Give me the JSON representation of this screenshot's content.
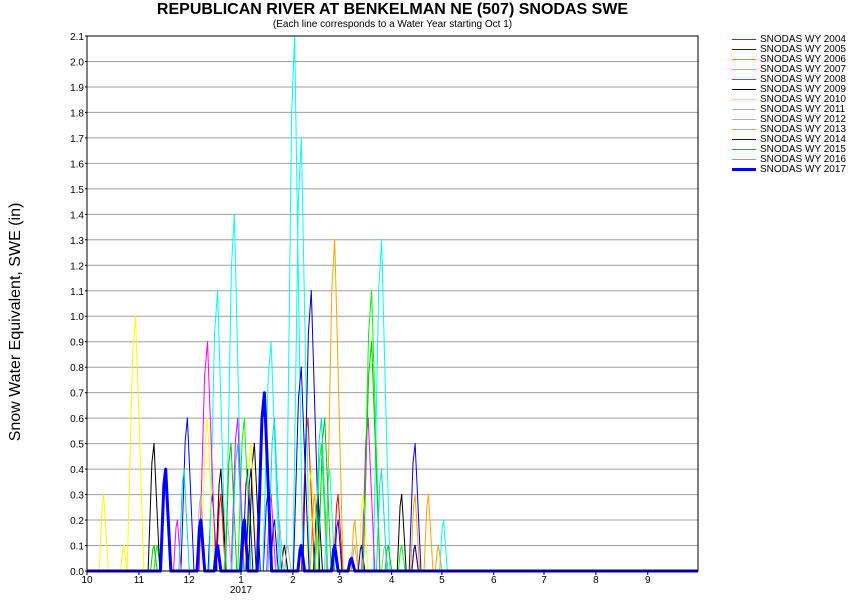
{
  "chart_data": {
    "type": "line",
    "title": "REPUBLICAN RIVER AT BENKELMAN NE (507) SNODAS SWE",
    "subtitle": "(Each line corresponds to a Water Year starting Oct 1)",
    "ylabel": "Snow Water Equivalent, SWE (in)",
    "xlabel": "",
    "year_label": "2017",
    "ylim": [
      0,
      2.1
    ],
    "xlim_days": [
      0,
      365
    ],
    "grid": true,
    "legend": "right",
    "x_ticks": [
      {
        "label": "10",
        "day": 0
      },
      {
        "label": "11",
        "day": 31
      },
      {
        "label": "12",
        "day": 61
      },
      {
        "label": "1",
        "day": 92
      },
      {
        "label": "2",
        "day": 123
      },
      {
        "label": "3",
        "day": 151
      },
      {
        "label": "4",
        "day": 182
      },
      {
        "label": "5",
        "day": 212
      },
      {
        "label": "6",
        "day": 243
      },
      {
        "label": "7",
        "day": 273
      },
      {
        "label": "8",
        "day": 304
      },
      {
        "label": "9",
        "day": 335
      }
    ],
    "y_ticks": [
      "0.0",
      "0.1",
      "0.2",
      "0.3",
      "0.4",
      "0.5",
      "0.6",
      "0.7",
      "0.8",
      "0.9",
      "1.0",
      "1.1",
      "1.2",
      "1.3",
      "1.4",
      "1.5",
      "1.6",
      "1.7",
      "1.8",
      "1.9",
      "2.0",
      "2.1"
    ],
    "series": [
      {
        "name": "SNODAS WY 2004",
        "color": "#ff0000",
        "peaks": [
          [
            80,
            0.3
          ],
          [
            106,
            0.7
          ],
          [
            132,
            0.6
          ],
          [
            150,
            0.3
          ],
          [
            196,
            0.1
          ]
        ]
      },
      {
        "name": "SNODAS WY 2005",
        "color": "#0000ff",
        "peaks": [
          [
            60,
            0.6
          ],
          [
            75,
            0.3
          ],
          [
            96,
            0.4
          ],
          [
            108,
            0.3
          ],
          [
            150,
            0.2
          ],
          [
            196,
            0.5
          ]
        ]
      },
      {
        "name": "SNODAS WY 2006",
        "color": "#00ff00",
        "peaks": [
          [
            42,
            0.1
          ],
          [
            94,
            0.6
          ],
          [
            140,
            0.5
          ],
          [
            170,
            1.1
          ],
          [
            188,
            0.1
          ]
        ]
      },
      {
        "name": "SNODAS WY 2007",
        "color": "#00ffff",
        "peaks": [
          [
            78,
            1.1
          ],
          [
            88,
            1.4
          ],
          [
            110,
            0.9
          ],
          [
            124,
            2.1
          ],
          [
            128,
            1.7
          ],
          [
            145,
            0.4
          ],
          [
            176,
            1.3
          ],
          [
            213,
            0.2
          ]
        ]
      },
      {
        "name": "SNODAS WY 2008",
        "color": "#ff00ff",
        "peaks": [
          [
            54,
            0.2
          ],
          [
            72,
            0.9
          ],
          [
            90,
            0.6
          ],
          [
            110,
            0.3
          ],
          [
            168,
            0.6
          ]
        ]
      },
      {
        "name": "SNODAS WY 2009",
        "color": "#000000",
        "peaks": [
          [
            40,
            0.5
          ],
          [
            80,
            0.4
          ],
          [
            100,
            0.5
          ],
          [
            118,
            0.1
          ],
          [
            138,
            0.3
          ],
          [
            188,
            0.3
          ]
        ]
      },
      {
        "name": "SNODAS WY 2010",
        "color": "#ffff00",
        "peaks": [
          [
            10,
            0.3
          ],
          [
            22,
            0.1
          ],
          [
            29,
            1.0
          ],
          [
            72,
            0.6
          ],
          [
            98,
            0.5
          ],
          [
            134,
            0.4
          ],
          [
            165,
            0.3
          ]
        ]
      },
      {
        "name": "SNODAS WY 2011",
        "color": "#b0b0b0",
        "peaks": [
          [
            68,
            0.3
          ],
          [
            115,
            0.2
          ],
          [
            160,
            0.1
          ]
        ]
      },
      {
        "name": "SNODAS WY 2012",
        "color": "#b0b0b0",
        "peaks": [
          [
            84,
            0.2
          ],
          [
            120,
            0.1
          ],
          [
            178,
            0.1
          ]
        ]
      },
      {
        "name": "SNODAS WY 2013",
        "color": "#ffa500",
        "peaks": [
          [
            136,
            0.3
          ],
          [
            148,
            1.3
          ],
          [
            160,
            0.2
          ],
          [
            196,
            0.3
          ],
          [
            204,
            0.3
          ],
          [
            210,
            0.1
          ]
        ]
      },
      {
        "name": "SNODAS WY 2014",
        "color": "#0000c0",
        "peaks": [
          [
            98,
            0.4
          ],
          [
            112,
            0.2
          ],
          [
            128,
            0.8
          ],
          [
            134,
            1.1
          ],
          [
            164,
            0.1
          ],
          [
            196,
            0.1
          ]
        ]
      },
      {
        "name": "SNODAS WY 2015",
        "color": "#00cc00",
        "peaks": [
          [
            40,
            0.1
          ],
          [
            86,
            0.5
          ],
          [
            142,
            0.6
          ],
          [
            170,
            0.9
          ],
          [
            180,
            0.1
          ]
        ]
      },
      {
        "name": "SNODAS WY 2016",
        "color": "#00dddd",
        "peaks": [
          [
            58,
            0.4
          ],
          [
            90,
            0.5
          ],
          [
            112,
            0.6
          ],
          [
            140,
            0.6
          ],
          [
            176,
            0.4
          ]
        ]
      },
      {
        "name": "SNODAS WY 2017",
        "color": "#0000ff",
        "bold": true,
        "peaks": [
          [
            47,
            0.4
          ],
          [
            68,
            0.2
          ],
          [
            78,
            0.1
          ],
          [
            94,
            0.2
          ],
          [
            106,
            0.7
          ],
          [
            128,
            0.1
          ],
          [
            148,
            0.1
          ],
          [
            158,
            0.05
          ]
        ]
      }
    ]
  }
}
